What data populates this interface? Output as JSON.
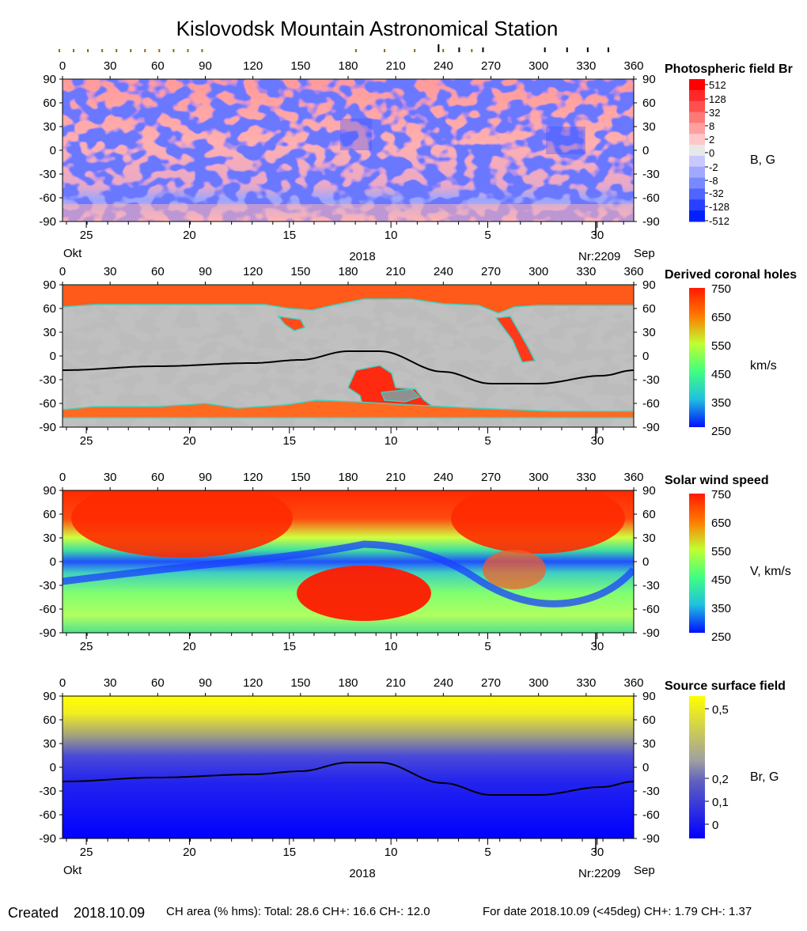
{
  "title": "Kislovodsk Mountain Astronomical Station",
  "colors": {
    "field_neg_strong": "#0a1aff",
    "field_neg": "#7f8fff",
    "field_zero": "#e6e6e6",
    "field_pos": "#ff9090",
    "field_pos_strong": "#ff1a1a",
    "ch_gray_light": "#c0c0c0",
    "ch_gray_dark": "#808080",
    "speed_fast": "#ff2000",
    "speed_mid": "#60ff80",
    "speed_slow": "#1030ff",
    "ss_high": "#ffff00",
    "ss_low": "#0000ff"
  },
  "chart_data": [
    {
      "type": "heatmap",
      "title": "Photospheric field Br",
      "unit": "B, G",
      "x_ticks": [
        "0",
        "30",
        "60",
        "90",
        "120",
        "150",
        "180",
        "210",
        "240",
        "270",
        "300",
        "330",
        "360"
      ],
      "y_ticks": [
        "90",
        "60",
        "30",
        "0",
        "-30",
        "-60",
        "-90"
      ],
      "date_ticks": [
        "25",
        "20",
        "15",
        "10",
        "5",
        "30"
      ],
      "month_left": "Okt",
      "month_right": "Sep",
      "year": "2018",
      "rotation": "Nr:2209",
      "colorbar_labels": [
        "512",
        "128",
        "32",
        "8",
        "2",
        "0",
        "-2",
        "-8",
        "-32",
        "-128",
        "-512"
      ],
      "xlim": [
        0,
        360
      ],
      "ylim": [
        -90,
        90
      ]
    },
    {
      "type": "heatmap",
      "title": "Derived coronal holes",
      "unit": "km/s",
      "x_ticks": [
        "0",
        "30",
        "60",
        "90",
        "120",
        "150",
        "180",
        "210",
        "240",
        "270",
        "300",
        "330",
        "360"
      ],
      "y_ticks": [
        "90",
        "60",
        "30",
        "0",
        "-30",
        "-60",
        "-90"
      ],
      "date_ticks": [
        "25",
        "20",
        "15",
        "10",
        "5",
        "30"
      ],
      "colorbar_labels": [
        "750",
        "650",
        "550",
        "450",
        "350",
        "250"
      ],
      "neutral_line": {
        "x": [
          0,
          60,
          120,
          150,
          180,
          200,
          240,
          270,
          300,
          340,
          360
        ],
        "y": [
          -18,
          -13,
          -9,
          -5,
          6,
          6,
          -20,
          -35,
          -35,
          -25,
          -18
        ]
      },
      "xlim": [
        0,
        360
      ],
      "ylim": [
        -90,
        90
      ]
    },
    {
      "type": "heatmap",
      "title": "Solar wind speed",
      "unit": "V, km/s",
      "x_ticks": [
        "0",
        "30",
        "60",
        "90",
        "120",
        "150",
        "180",
        "210",
        "240",
        "270",
        "300",
        "330",
        "360"
      ],
      "y_ticks": [
        "90",
        "60",
        "30",
        "0",
        "-30",
        "-60",
        "-90"
      ],
      "date_ticks": [
        "25",
        "20",
        "15",
        "10",
        "5",
        "30"
      ],
      "colorbar_labels": [
        "750",
        "650",
        "550",
        "450",
        "350",
        "250"
      ],
      "xlim": [
        0,
        360
      ],
      "ylim": [
        -90,
        90
      ]
    },
    {
      "type": "heatmap",
      "title": "Source surface field",
      "unit": "Br, G",
      "x_ticks": [
        "0",
        "30",
        "60",
        "90",
        "120",
        "150",
        "180",
        "210",
        "240",
        "270",
        "300",
        "330",
        "360"
      ],
      "y_ticks": [
        "90",
        "60",
        "30",
        "0",
        "-30",
        "-60",
        "-90"
      ],
      "date_ticks": [
        "25",
        "20",
        "15",
        "10",
        "5",
        "30"
      ],
      "month_left": "Okt",
      "month_right": "Sep",
      "year": "2018",
      "rotation": "Nr:2209",
      "colorbar_labels": [
        "0,5",
        "0,2",
        "0,1",
        "0"
      ],
      "neutral_line": {
        "x": [
          0,
          60,
          120,
          150,
          180,
          200,
          240,
          270,
          300,
          340,
          360
        ],
        "y": [
          -18,
          -13,
          -9,
          -5,
          6,
          6,
          -20,
          -35,
          -35,
          -25,
          -18
        ]
      },
      "xlim": [
        0,
        360
      ],
      "ylim": [
        -90,
        90
      ]
    }
  ],
  "footer": {
    "created_label": "Created",
    "created_date": "2018.10.09",
    "ch_area": "CH area (% hms): Total: 28.6 CH+: 16.6   CH-: 12.0",
    "for_date": "For date 2018.10.09 (<45deg) CH+: 1.79    CH-: 1.37"
  }
}
